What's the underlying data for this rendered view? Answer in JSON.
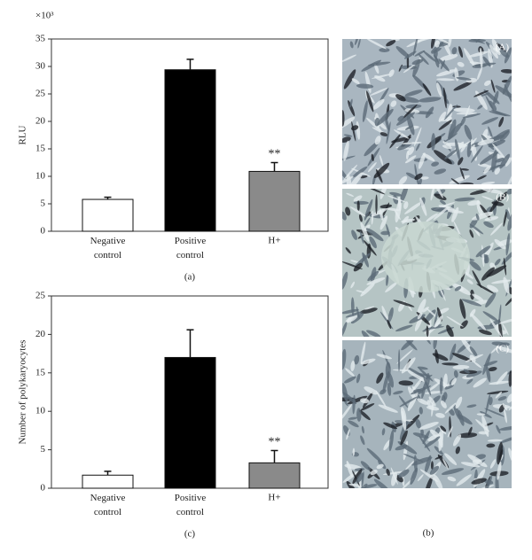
{
  "chart_data": [
    {
      "type": "bar",
      "y_label": "RLU",
      "y_multiplier": "×10³",
      "caption": "(a)",
      "categories": [
        "Negative control",
        "Positive control",
        "H+"
      ],
      "values": [
        5.8,
        29.4,
        10.9
      ],
      "errors": [
        0.4,
        1.9,
        1.6
      ],
      "value_annotations": [
        null,
        null,
        "**"
      ],
      "colors": [
        "#ffffff",
        "#000000",
        "#8a8a8a"
      ],
      "ylim": [
        0,
        35
      ],
      "yticks": [
        0,
        5,
        10,
        15,
        20,
        25,
        30,
        35
      ],
      "grid": false
    },
    {
      "type": "bar",
      "y_label": "Number of polykaryocytes",
      "caption": "(c)",
      "categories": [
        "Negative control",
        "Positive control",
        "H+"
      ],
      "values": [
        1.7,
        17,
        3.3
      ],
      "errors": [
        0.5,
        3.6,
        1.6
      ],
      "value_annotations": [
        null,
        null,
        "**"
      ],
      "colors": [
        "#ffffff",
        "#000000",
        "#8a8a8a"
      ],
      "ylim": [
        0,
        25
      ],
      "yticks": [
        0,
        5,
        10,
        15,
        20,
        25
      ],
      "grid": false
    }
  ],
  "images": {
    "caption": "(b)",
    "labels": [
      "(A)",
      "(B)",
      "(C)"
    ]
  }
}
